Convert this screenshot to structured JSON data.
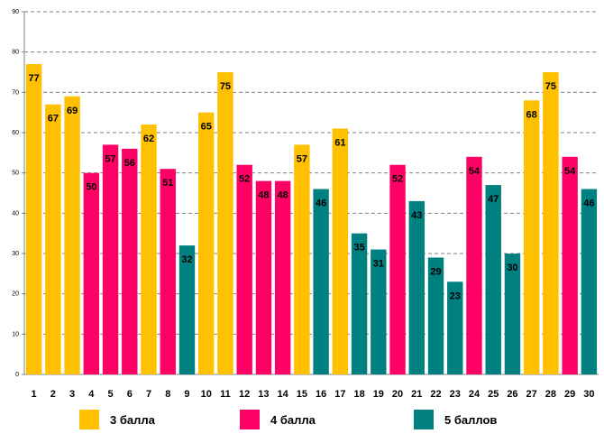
{
  "chart_data": {
    "type": "bar",
    "title": "",
    "xlabel": "",
    "ylabel": "",
    "ylim": [
      0,
      90
    ],
    "ytick_step": 10,
    "grid": true,
    "legend_position": "bottom",
    "categories": [
      "1",
      "2",
      "3",
      "4",
      "5",
      "6",
      "7",
      "8",
      "9",
      "10",
      "11",
      "12",
      "13",
      "14",
      "15",
      "16",
      "17",
      "18",
      "19",
      "20",
      "21",
      "22",
      "23",
      "24",
      "25",
      "26",
      "27",
      "28",
      "29",
      "30"
    ],
    "values": [
      77,
      67,
      69,
      50,
      57,
      56,
      62,
      51,
      32,
      65,
      75,
      52,
      48,
      48,
      57,
      46,
      61,
      35,
      31,
      52,
      43,
      29,
      23,
      54,
      47,
      30,
      68,
      75,
      54,
      46
    ],
    "value_labels": [
      "77",
      "67",
      "69",
      "50",
      "57",
      "56",
      "62",
      "51",
      "32",
      "65",
      "75",
      "52",
      "48",
      "48",
      "57",
      "46",
      "61",
      "35",
      "31",
      "52",
      "43",
      "29",
      "23",
      "54",
      "47",
      "30",
      "68",
      "75",
      "54",
      "46"
    ],
    "groups": [
      0,
      0,
      0,
      1,
      1,
      1,
      0,
      1,
      2,
      0,
      0,
      1,
      1,
      1,
      0,
      2,
      0,
      2,
      2,
      1,
      2,
      2,
      2,
      1,
      2,
      2,
      0,
      0,
      1,
      2
    ],
    "legend": [
      {
        "label": "3 балла",
        "color": "#ffc000"
      },
      {
        "label": "4 балла",
        "color": "#ff0066"
      },
      {
        "label": "5 баллов",
        "color": "#008080"
      }
    ],
    "y_tick_labels": [
      "0",
      "10",
      "20",
      "30",
      "40",
      "50",
      "60",
      "70",
      "80",
      "90"
    ]
  }
}
